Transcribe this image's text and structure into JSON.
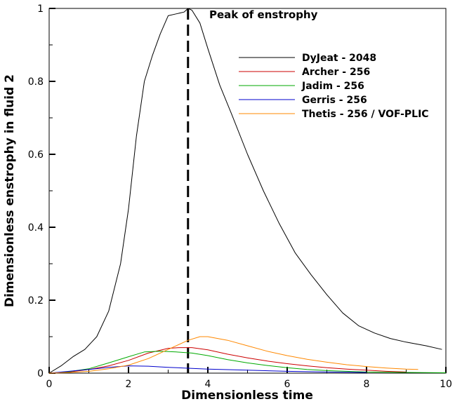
{
  "chart_data": {
    "type": "line",
    "title": "",
    "xlabel": "Dimensionless time",
    "ylabel": "Dimensionless enstrophy in fluid 2",
    "xlim": [
      0,
      10
    ],
    "ylim": [
      0,
      1
    ],
    "xticks": [
      "0",
      "2",
      "4",
      "6",
      "8",
      "10"
    ],
    "yticks": [
      "0",
      "0.2",
      "0.4",
      "0.6",
      "0.8",
      "1"
    ],
    "legend_position": "top-right",
    "annotation": {
      "label": "Peak of enstrophy",
      "x": 3.5
    },
    "series": [
      {
        "name": "DyJeat - 2048",
        "color": "#000000",
        "x": [
          0,
          0.3,
          0.6,
          0.9,
          1.2,
          1.5,
          1.8,
          2.0,
          2.2,
          2.4,
          2.6,
          2.8,
          3.0,
          3.2,
          3.4,
          3.5,
          3.6,
          3.8,
          4.0,
          4.3,
          4.6,
          5.0,
          5.4,
          5.8,
          6.2,
          6.6,
          7.0,
          7.4,
          7.8,
          8.2,
          8.6,
          9.0,
          9.5,
          9.9
        ],
        "values": [
          0.0,
          0.02,
          0.045,
          0.065,
          0.1,
          0.17,
          0.3,
          0.45,
          0.65,
          0.8,
          0.87,
          0.93,
          0.98,
          0.985,
          0.99,
          1.0,
          0.995,
          0.96,
          0.89,
          0.79,
          0.71,
          0.6,
          0.5,
          0.41,
          0.33,
          0.27,
          0.215,
          0.165,
          0.13,
          0.11,
          0.095,
          0.085,
          0.075,
          0.065
        ]
      },
      {
        "name": "Archer - 256",
        "color": "#cc0000",
        "x": [
          0,
          0.5,
          1.0,
          1.5,
          2.0,
          2.5,
          3.0,
          3.3,
          3.6,
          4.0,
          4.5,
          5.0,
          5.5,
          6.0,
          6.5,
          7.0,
          7.5,
          8.0,
          8.5,
          9.0
        ],
        "values": [
          0,
          0.003,
          0.01,
          0.02,
          0.035,
          0.055,
          0.068,
          0.07,
          0.07,
          0.064,
          0.052,
          0.042,
          0.033,
          0.026,
          0.02,
          0.015,
          0.011,
          0.008,
          0.005,
          0.003
        ]
      },
      {
        "name": "Jadim - 256",
        "color": "#00aa00",
        "x": [
          0,
          0.5,
          1.0,
          1.5,
          2.0,
          2.4,
          2.8,
          3.2,
          3.6,
          4.0,
          4.5,
          5.0,
          5.5,
          6.0,
          6.5,
          7.0,
          7.5,
          8.0,
          9.0,
          10.0
        ],
        "values": [
          0,
          0.004,
          0.012,
          0.028,
          0.045,
          0.058,
          0.06,
          0.058,
          0.055,
          0.048,
          0.037,
          0.028,
          0.021,
          0.015,
          0.01,
          0.007,
          0.005,
          0.003,
          0.002,
          0.001
        ]
      },
      {
        "name": "Gerris - 256",
        "color": "#0000cc",
        "x": [
          0,
          0.5,
          1.0,
          1.5,
          2.0,
          2.5,
          3.0,
          4.0,
          5.0,
          6.0,
          7.0,
          8.0
        ],
        "values": [
          0,
          0.005,
          0.01,
          0.016,
          0.02,
          0.019,
          0.016,
          0.011,
          0.008,
          0.005,
          0.003,
          0.002
        ]
      },
      {
        "name": "Thetis - 256 / VOF-PLIC",
        "color": "#ff8800",
        "x": [
          0,
          0.5,
          1.0,
          1.5,
          2.0,
          2.5,
          3.0,
          3.5,
          3.8,
          4.0,
          4.5,
          5.0,
          5.5,
          6.0,
          6.5,
          7.0,
          7.5,
          8.0,
          8.5,
          9.0,
          9.3
        ],
        "values": [
          0,
          0.002,
          0.005,
          0.012,
          0.022,
          0.04,
          0.065,
          0.09,
          0.1,
          0.1,
          0.09,
          0.075,
          0.06,
          0.048,
          0.038,
          0.03,
          0.023,
          0.018,
          0.014,
          0.011,
          0.01
        ]
      }
    ]
  }
}
